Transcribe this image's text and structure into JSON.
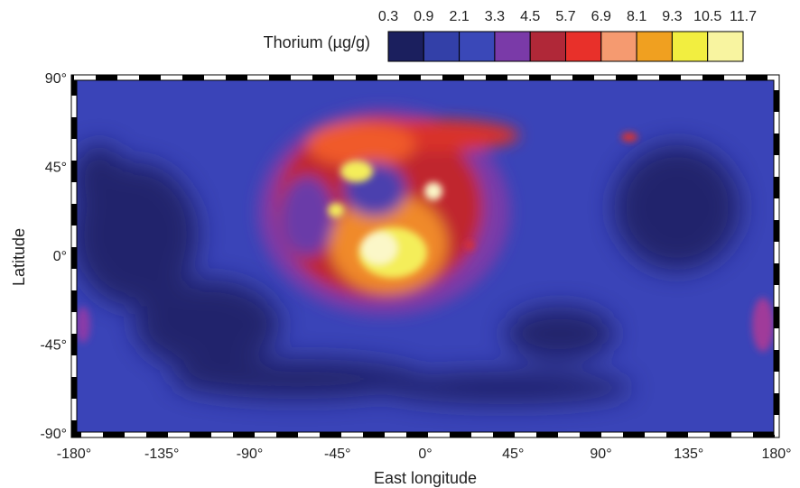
{
  "colorbar": {
    "label": "Thorium (µg/g)",
    "ticks": [
      "0.3",
      "0.9",
      "2.1",
      "3.3",
      "4.5",
      "5.7",
      "6.9",
      "8.1",
      "9.3",
      "10.5",
      "11.7"
    ]
  },
  "axes": {
    "xlabel": "East longitude",
    "ylabel": "Latitude",
    "xticks": [
      "-180°",
      "-135°",
      "-90°",
      "-45°",
      "0°",
      "45°",
      "90°",
      "135°",
      "180°"
    ],
    "yticks": [
      "90°",
      "45°",
      "0°",
      "-45°",
      "-90°"
    ]
  }
}
